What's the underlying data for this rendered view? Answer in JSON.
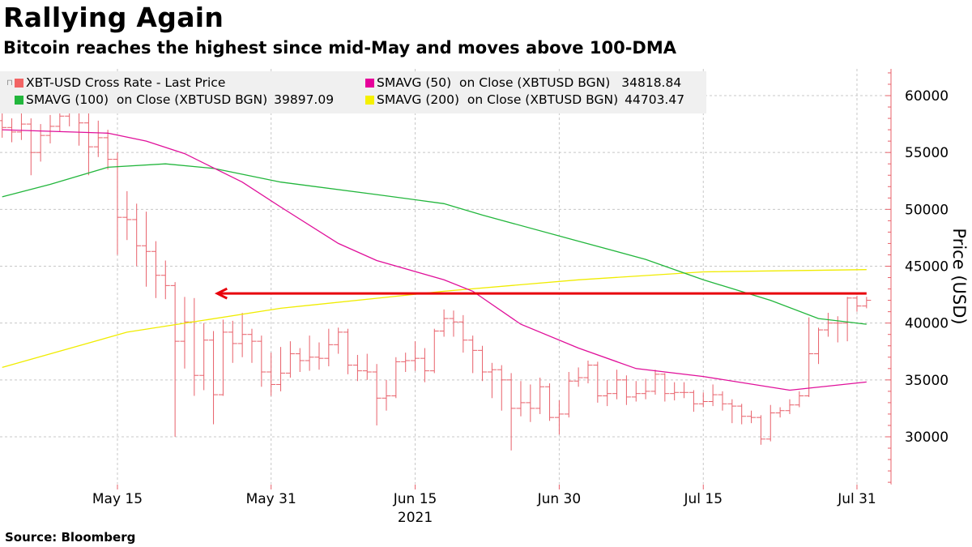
{
  "title": "Rallying Again",
  "subtitle": "Bitcoin reaches the highest since mid-May and moves above 100-DMA",
  "source": "Source: Bloomberg",
  "chart_data": {
    "type": "ohlc-line",
    "ylabel": "Price (USD)",
    "xlabel": "2021",
    "ylim": [
      25800,
      62400
    ],
    "yticks": [
      30000,
      35000,
      40000,
      45000,
      50000,
      55000,
      60000
    ],
    "ytick_labels": [
      "30000",
      "35000",
      "40000",
      "45000",
      "50000",
      "55000",
      "60000"
    ],
    "x_start": "May 3",
    "x_end": "Aug 1",
    "xticks": [
      {
        "index": 12,
        "label": "May 15"
      },
      {
        "index": 28,
        "label": "May 31"
      },
      {
        "index": 43,
        "label": "Jun 15"
      },
      {
        "index": 58,
        "label": "Jun 30"
      },
      {
        "index": 73,
        "label": "Jul 15"
      },
      {
        "index": 89,
        "label": "Jul 31"
      }
    ],
    "year_label_index": 43,
    "grid": true,
    "legend_position": "top-left",
    "legend": [
      {
        "label": "XBT-USD Cross Rate - Last Price",
        "value": "",
        "color": "#f26464"
      },
      {
        "label": "SMAVG (50)  on Close (XBTUSD BGN)",
        "value": "34818.84",
        "color": "#e6009a"
      },
      {
        "label": "SMAVG (100)  on Close (XBTUSD BGN)",
        "value": "39897.09",
        "color": "#22b63c"
      },
      {
        "label": "SMAVG (200)  on Close (XBTUSD BGN)",
        "value": "44703.47",
        "color": "#f5f000"
      }
    ],
    "price_bars": {
      "open": [
        57800,
        57200,
        56800,
        57500,
        55000,
        56500,
        57300,
        58200,
        58800,
        57600,
        55500,
        56300,
        54400,
        49300,
        49100,
        46800,
        46300,
        44200,
        43300,
        38400,
        40100,
        35400,
        38500,
        33700,
        39200,
        38200,
        39000,
        38400,
        35700,
        34600,
        35600,
        37300,
        36700,
        37000,
        36900,
        38100,
        39200,
        36300,
        35800,
        35700,
        33400,
        33600,
        36600,
        36700,
        36900,
        35800,
        39300,
        40400,
        40100,
        38500,
        37600,
        35700,
        35900,
        35000,
        32500,
        33000,
        32500,
        34400,
        31700,
        32000,
        34900,
        35200,
        36300,
        33600,
        33800,
        35000,
        33500,
        33800,
        34000,
        35500,
        33800,
        33900,
        33900,
        32900,
        33100,
        33700,
        32900,
        32700,
        31800,
        31700,
        29800,
        32100,
        32300,
        32800,
        33600,
        37300,
        39400,
        40000,
        40000,
        42200,
        41500
      ],
      "high": [
        58600,
        58000,
        58500,
        58000,
        57500,
        58300,
        59300,
        59700,
        59200,
        58500,
        57800,
        57000,
        55000,
        51600,
        50500,
        49800,
        47200,
        45500,
        43600,
        42300,
        42200,
        40000,
        39300,
        40300,
        40200,
        40900,
        39500,
        38900,
        37400,
        37900,
        38400,
        37800,
        38900,
        38300,
        39500,
        39600,
        39500,
        37200,
        37300,
        36400,
        35000,
        37000,
        37400,
        38400,
        37800,
        39500,
        41200,
        41100,
        40700,
        38900,
        38000,
        36500,
        36300,
        35600,
        34900,
        34600,
        35200,
        34700,
        33200,
        35700,
        36100,
        36700,
        36600,
        35000,
        35900,
        35400,
        34900,
        35100,
        35900,
        35600,
        34800,
        34800,
        34100,
        33900,
        34600,
        34000,
        33300,
        32900,
        32300,
        31900,
        32800,
        32600,
        33300,
        34000,
        40500,
        39600,
        40900,
        40600,
        42300,
        42400,
        42300
      ],
      "low": [
        56300,
        55900,
        56100,
        53000,
        54200,
        55800,
        56800,
        57300,
        55600,
        53000,
        54600,
        53500,
        46000,
        47300,
        45000,
        43200,
        42200,
        42100,
        30000,
        36000,
        33600,
        34100,
        31100,
        33600,
        36500,
        37000,
        36500,
        34400,
        33600,
        34000,
        35200,
        35700,
        35800,
        35900,
        36200,
        37300,
        35500,
        34900,
        35000,
        31000,
        32300,
        33400,
        35700,
        35800,
        34800,
        35600,
        38800,
        38800,
        37400,
        35600,
        34900,
        33400,
        32300,
        28800,
        31800,
        31300,
        32000,
        31400,
        30200,
        31700,
        34400,
        34700,
        33000,
        32700,
        33300,
        32800,
        33100,
        33300,
        33700,
        33100,
        33200,
        33400,
        32200,
        32600,
        32700,
        32300,
        31200,
        31100,
        31200,
        29300,
        29600,
        31700,
        32000,
        32600,
        33500,
        36400,
        38800,
        38300,
        38400,
        41000,
        41300
      ],
      "close": [
        57200,
        56800,
        57500,
        55000,
        56500,
        57300,
        58200,
        58800,
        57600,
        55500,
        56300,
        54400,
        49300,
        49100,
        46800,
        46300,
        44200,
        43300,
        38400,
        40100,
        35400,
        38500,
        33700,
        39200,
        38200,
        39000,
        38400,
        35700,
        34600,
        35600,
        37300,
        36700,
        37000,
        36900,
        38100,
        39200,
        36300,
        35800,
        35700,
        33400,
        33600,
        36600,
        36700,
        36900,
        35800,
        39300,
        40400,
        40100,
        38500,
        37600,
        35700,
        35900,
        35000,
        32500,
        33000,
        32500,
        34400,
        31700,
        32000,
        34900,
        35200,
        36300,
        33600,
        33800,
        35000,
        33500,
        33800,
        34000,
        35500,
        33800,
        33900,
        33900,
        32900,
        33100,
        33700,
        32900,
        32700,
        31800,
        31700,
        29800,
        32100,
        32300,
        32800,
        33600,
        37300,
        39400,
        40000,
        40000,
        42200,
        41500,
        42000
      ]
    },
    "sma50": {
      "index": [
        0,
        11,
        15,
        19,
        25,
        29,
        35,
        39,
        46,
        49,
        54,
        60,
        66,
        73,
        82,
        90
      ],
      "value": [
        57000,
        56700,
        56000,
        54900,
        52400,
        50200,
        47000,
        45500,
        43800,
        42800,
        39900,
        37800,
        36000,
        35300,
        34100,
        34819
      ]
    },
    "sma100": {
      "index": [
        0,
        5,
        11,
        17,
        22,
        29,
        39,
        46,
        50,
        60,
        67,
        73,
        80,
        85,
        90
      ],
      "value": [
        51100,
        52200,
        53700,
        54000,
        53600,
        52400,
        51300,
        50500,
        49500,
        47200,
        45600,
        43800,
        42000,
        40400,
        39897
      ]
    },
    "sma200": {
      "index": [
        0,
        13,
        29,
        46,
        60,
        73,
        90
      ],
      "value": [
        36100,
        39200,
        41300,
        42800,
        43800,
        44500,
        44703
      ]
    },
    "annotation": {
      "type": "arrow-left",
      "level": 42600,
      "from_index": 90,
      "to_index": 22.4,
      "color": "#e8000b"
    }
  }
}
